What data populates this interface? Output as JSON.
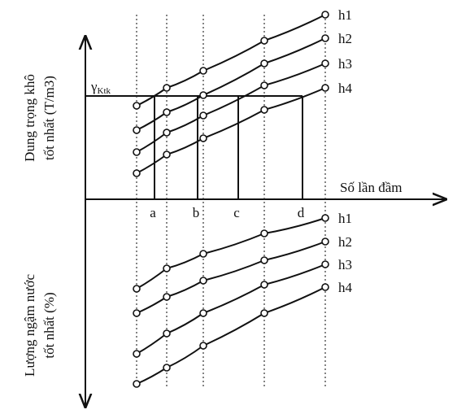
{
  "top_panel": {
    "axis_label_lines": [
      "Dung trọng khô",
      "tốt nhất (T/m3)"
    ],
    "curve_labels": [
      "h1",
      "h2",
      "h3",
      "h4"
    ],
    "reference_symbol": "γ",
    "reference_subscript": "Ktk"
  },
  "x_axis": {
    "label": "Số lần đầm",
    "points": [
      "a",
      "b",
      "c",
      "d"
    ]
  },
  "bottom_panel": {
    "axis_label_lines": [
      "Lượng ngậm nước",
      "tốt nhất (%)"
    ],
    "curve_labels": [
      "h1",
      "h2",
      "h3",
      "h4"
    ]
  }
}
